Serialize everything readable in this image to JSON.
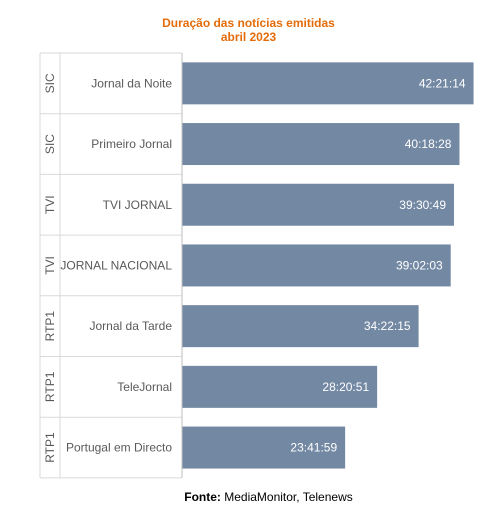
{
  "title_line1": "Duração das notícias emitidas",
  "title_line2": "abril 2023",
  "source_label": "Fonte:",
  "source_text": "MediaMonitor, Telenews",
  "colors": {
    "bar": "#7388a3",
    "title": "#e46c0a",
    "grid": "#d9d9d9"
  },
  "chart_data": {
    "type": "bar",
    "orientation": "horizontal",
    "categories": [
      {
        "channel": "SIC",
        "program": "Jornal da Noite"
      },
      {
        "channel": "SIC",
        "program": "Primeiro Jornal"
      },
      {
        "channel": "TVI",
        "program": "TVI JORNAL"
      },
      {
        "channel": "TVI",
        "program": "JORNAL NACIONAL"
      },
      {
        "channel": "RTP1",
        "program": "Jornal da Tarde"
      },
      {
        "channel": "RTP1",
        "program": "TeleJornal"
      },
      {
        "channel": "RTP1",
        "program": "Portugal em Directo"
      }
    ],
    "values": [
      "42:21:14",
      "40:18:28",
      "39:30:49",
      "39:02:03",
      "34:22:15",
      "28:20:51",
      "23:41:59"
    ],
    "value_format": "hh:mm:ss",
    "xlim_hours": [
      0,
      43
    ]
  }
}
